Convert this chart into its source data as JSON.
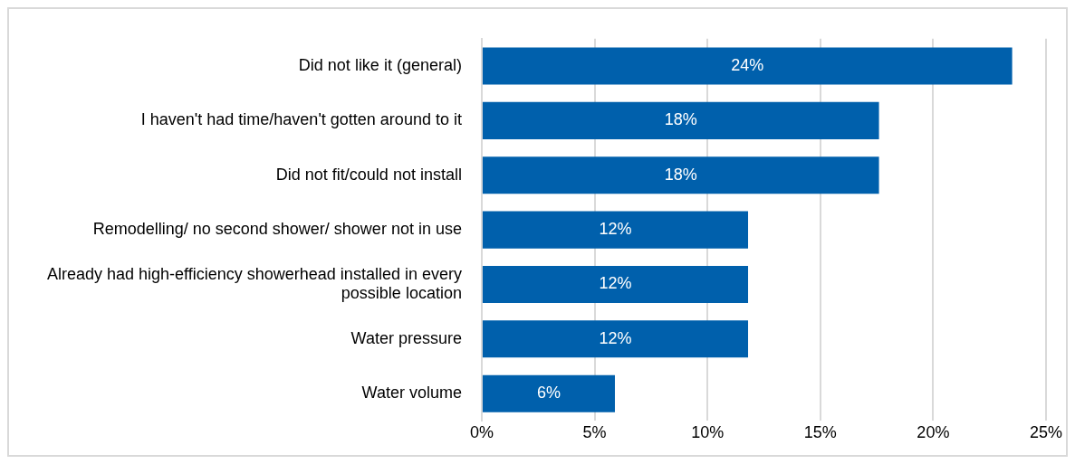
{
  "chart_data": {
    "type": "bar",
    "orientation": "horizontal",
    "categories": [
      "Did not like it (general)",
      "I haven't had time/haven't gotten around to it",
      "Did not fit/could not install",
      "Remodelling/ no second shower/ shower not in use",
      "Already had high-efficiency showerhead installed in every possible location",
      "Water pressure",
      "Water volume"
    ],
    "values": [
      23.5,
      17.6,
      17.6,
      11.8,
      11.8,
      11.8,
      5.9
    ],
    "value_labels": [
      "24%",
      "18%",
      "18%",
      "12%",
      "12%",
      "12%",
      "6%"
    ],
    "color": "#0060ac",
    "xlim": [
      0,
      25
    ],
    "xticks": [
      {
        "value": 0,
        "label": "0%"
      },
      {
        "value": 5,
        "label": "5%"
      },
      {
        "value": 10,
        "label": "10%"
      },
      {
        "value": 15,
        "label": "15%"
      },
      {
        "value": 20,
        "label": "20%"
      },
      {
        "value": 25,
        "label": "25%"
      }
    ],
    "grid": "x",
    "legend": false
  }
}
